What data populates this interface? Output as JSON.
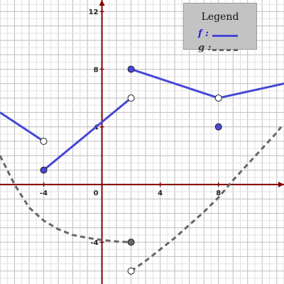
{
  "chart_data": {
    "type": "line",
    "xlim": [
      -7,
      12.5
    ],
    "ylim": [
      -6.9,
      12.8
    ],
    "grid": true,
    "x_ticks": [
      "-4",
      "0",
      "4",
      "8"
    ],
    "y_ticks": [
      "12",
      "8",
      "4",
      "-4"
    ],
    "legend": {
      "title": "Legend",
      "placement": "top-right",
      "entries": [
        {
          "label": "f :",
          "color": "#4747d6",
          "style": "solid"
        },
        {
          "label": "g :",
          "color": "#666666",
          "style": "dashed"
        }
      ]
    },
    "series": [
      {
        "name": "f",
        "color": "#4747d6",
        "style": "solid",
        "segments": [
          [
            [
              -7,
              5
            ],
            [
              -4,
              3
            ]
          ],
          [
            [
              -4,
              1
            ],
            [
              2,
              6
            ]
          ],
          [
            [
              2,
              8
            ],
            [
              8,
              6
            ]
          ],
          [
            [
              8,
              6
            ],
            [
              12.5,
              7
            ]
          ]
        ],
        "points": [
          {
            "x": -4,
            "y": 3,
            "filled": false
          },
          {
            "x": -4,
            "y": 1,
            "filled": true
          },
          {
            "x": 2,
            "y": 6,
            "filled": false
          },
          {
            "x": 2,
            "y": 8,
            "filled": true
          },
          {
            "x": 8,
            "y": 6,
            "filled": false
          },
          {
            "x": 8,
            "y": 4,
            "filled": true
          }
        ]
      },
      {
        "name": "g",
        "color": "#666666",
        "style": "dashed",
        "segments": [
          [
            [
              -7,
              2
            ],
            [
              -6,
              0
            ],
            [
              -5,
              -1.6
            ],
            [
              -4,
              -2.5
            ],
            [
              -3,
              -3.1
            ],
            [
              -2,
              -3.5
            ],
            [
              -1,
              -3.7
            ],
            [
              0,
              -3.85
            ],
            [
              1,
              -3.95
            ],
            [
              2,
              -4
            ]
          ],
          [
            [
              2,
              -6
            ],
            [
              3,
              -5.3
            ],
            [
              4,
              -4.5
            ],
            [
              5,
              -3.7
            ],
            [
              6,
              -2.8
            ],
            [
              7,
              -1.9
            ],
            [
              8,
              -0.9
            ],
            [
              9,
              0.3
            ],
            [
              10,
              1.4
            ],
            [
              11,
              2.5
            ],
            [
              12,
              3.6
            ],
            [
              12.3,
              4
            ]
          ]
        ],
        "points": [
          {
            "x": 2,
            "y": -4,
            "filled": true
          },
          {
            "x": 2,
            "y": -6,
            "filled": false
          }
        ]
      }
    ]
  }
}
